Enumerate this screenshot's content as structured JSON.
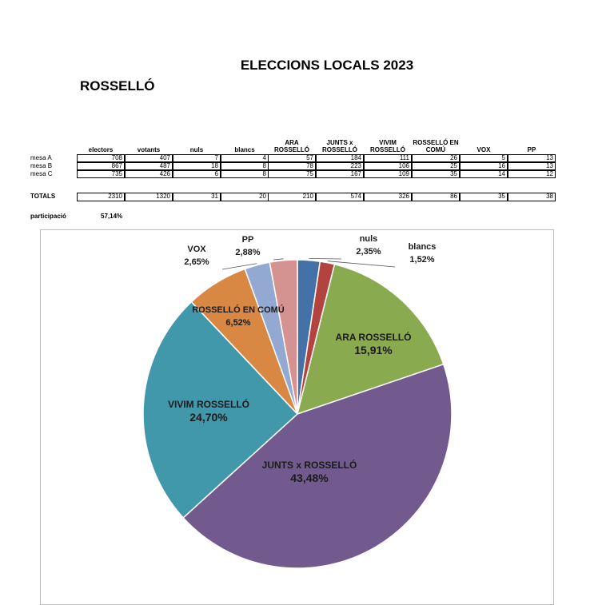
{
  "header": {
    "title": "ELECCIONS LOCALS 2023",
    "subtitle": "ROSSELLÓ"
  },
  "table": {
    "columns": [
      "electors",
      "votants",
      "nuls",
      "blancs",
      "ARA ROSSELLÓ",
      "JUNTS x ROSSELLÓ",
      "VIVIM ROSSELLÓ",
      "ROSSELLÓ EN COMÚ",
      "VOX",
      "PP"
    ],
    "rows": [
      {
        "label": "mesa A",
        "values": [
          "708",
          "407",
          "7",
          "4",
          "57",
          "184",
          "111",
          "26",
          "5",
          "13"
        ]
      },
      {
        "label": "mesa B",
        "values": [
          "867",
          "487",
          "18",
          "8",
          "78",
          "223",
          "106",
          "25",
          "16",
          "13"
        ]
      },
      {
        "label": "mesa C",
        "values": [
          "735",
          "426",
          "6",
          "8",
          "75",
          "167",
          "109",
          "35",
          "14",
          "12"
        ]
      }
    ],
    "totals": {
      "label": "TOTALS",
      "values": [
        "2310",
        "1320",
        "31",
        "20",
        "210",
        "574",
        "326",
        "86",
        "35",
        "38"
      ]
    }
  },
  "participation": {
    "label": "participació",
    "value": "57,14%"
  },
  "chart_data": {
    "type": "pie",
    "title": "",
    "slices": [
      {
        "name": "nuls",
        "value": 2.35,
        "label": "2,35%",
        "color": "#4472a8"
      },
      {
        "name": "blancs",
        "value": 1.52,
        "label": "1,52%",
        "color": "#b2433f"
      },
      {
        "name": "ARA ROSSELLÓ",
        "value": 15.91,
        "label": "15,91%",
        "color": "#8aaa4f"
      },
      {
        "name": "JUNTS x ROSSELLÓ",
        "value": 43.48,
        "label": "43,48%",
        "color": "#735a8e"
      },
      {
        "name": "VIVIM ROSSELLÓ",
        "value": 24.7,
        "label": "24,70%",
        "color": "#4298ab"
      },
      {
        "name": "ROSSELLÓ EN COMÚ",
        "value": 6.52,
        "label": "6,52%",
        "color": "#d88843"
      },
      {
        "name": "VOX",
        "value": 2.65,
        "label": "2,65%",
        "color": "#93a9d1"
      },
      {
        "name": "PP",
        "value": 2.88,
        "label": "2,88%",
        "color": "#d49291"
      }
    ]
  }
}
